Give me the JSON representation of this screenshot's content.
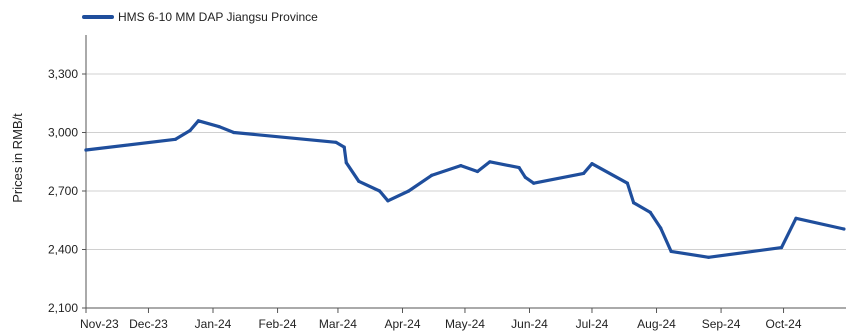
{
  "chart_data": {
    "type": "line",
    "title": "",
    "xlabel": "",
    "ylabel": "Prices in RMB/t",
    "ylim": [
      2100,
      3500
    ],
    "yticks": [
      2100,
      2400,
      2700,
      3000,
      3300
    ],
    "ytick_labels": [
      "2,100",
      "2,400",
      "2,700",
      "3,000",
      "3,300"
    ],
    "xlim": [
      "2023-11-01",
      "2024-10-31"
    ],
    "xticks": [
      "2023-11-01",
      "2023-12-01",
      "2024-01-01",
      "2024-02-01",
      "2024-03-01",
      "2024-04-01",
      "2024-05-01",
      "2024-06-01",
      "2024-07-01",
      "2024-08-01",
      "2024-09-01",
      "2024-10-01"
    ],
    "xtick_labels": [
      "Nov-23",
      "Dec-23",
      "Jan-24",
      "Feb-24",
      "Mar-24",
      "Apr-24",
      "May-24",
      "Jun-24",
      "Jul-24",
      "Aug-24",
      "Sep-24",
      "Oct-24"
    ],
    "grid": true,
    "legend": "top-left",
    "color": "#1f4e9c",
    "series": [
      {
        "name": "HMS 6-10 MM DAP Jiangsu Province",
        "x": [
          "2023-11-01",
          "2023-12-14",
          "2023-12-21",
          "2023-12-25",
          "2024-01-04",
          "2024-01-11",
          "2024-02-29",
          "2024-03-04",
          "2024-03-05",
          "2024-03-11",
          "2024-03-21",
          "2024-03-25",
          "2024-04-04",
          "2024-04-15",
          "2024-04-29",
          "2024-05-07",
          "2024-05-13",
          "2024-05-27",
          "2024-05-30",
          "2024-06-03",
          "2024-06-27",
          "2024-07-01",
          "2024-07-18",
          "2024-07-21",
          "2024-07-29",
          "2024-08-03",
          "2024-08-08",
          "2024-08-26",
          "2024-09-30",
          "2024-10-07",
          "2024-10-30"
        ],
        "values": [
          2910,
          2965,
          3010,
          3060,
          3030,
          3000,
          2950,
          2925,
          2845,
          2750,
          2700,
          2650,
          2700,
          2780,
          2830,
          2800,
          2850,
          2820,
          2770,
          2740,
          2790,
          2840,
          2740,
          2640,
          2590,
          2510,
          2390,
          2360,
          2410,
          2560,
          2505
        ]
      }
    ]
  }
}
